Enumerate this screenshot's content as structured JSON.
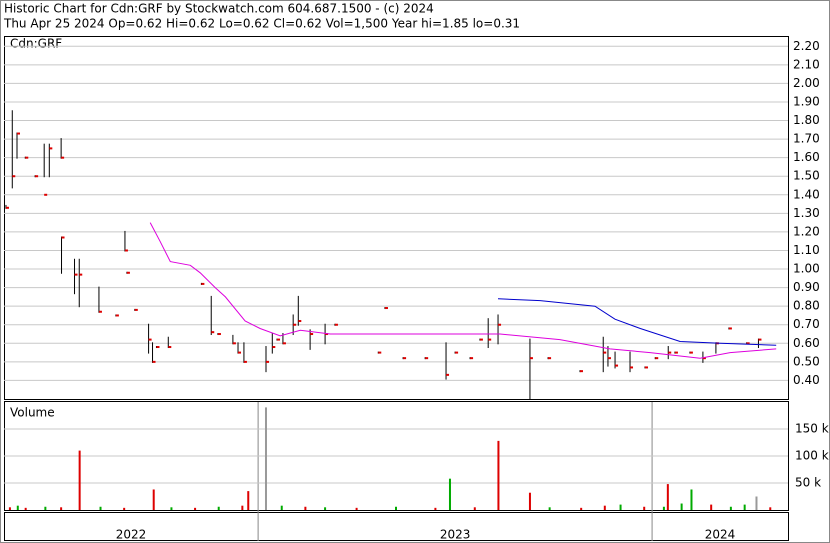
{
  "header": {
    "title": "Historic Chart for Cdn:GRF by Stockwatch.com 604.687.1500 - (c) 2024",
    "info": "Thu Apr 25 2024  Op=0.62  Hi=0.62  Lo=0.62  Cl=0.62  Vol=1,500  Year hi=1.85  lo=0.31"
  },
  "chart_data": [
    {
      "type": "ohlc",
      "label": "Cdn:GRF",
      "color": "#000000",
      "close_color": "#dd0000",
      "xlim": [
        2022.355,
        2024.345
      ],
      "xticks": [
        2023,
        2024
      ],
      "year_labels": [
        "2022",
        "2023",
        "2024"
      ],
      "ylim": [
        0.3,
        2.25
      ],
      "yticks": [
        {
          "value": 0.4,
          "label": "0.40"
        },
        {
          "value": 0.5,
          "label": "0.50"
        },
        {
          "value": 0.6,
          "label": "0.60"
        },
        {
          "value": 0.7,
          "label": "0.70"
        },
        {
          "value": 0.8,
          "label": "0.80"
        },
        {
          "value": 0.9,
          "label": "0.90"
        },
        {
          "value": 1.0,
          "label": "1.00"
        },
        {
          "value": 1.1,
          "label": "1.10"
        },
        {
          "value": 1.2,
          "label": "1.20"
        },
        {
          "value": 1.3,
          "label": "1.30"
        },
        {
          "value": 1.4,
          "label": "1.40"
        },
        {
          "value": 1.5,
          "label": "1.50"
        },
        {
          "value": 1.6,
          "label": "1.60"
        },
        {
          "value": 1.7,
          "label": "1.70"
        },
        {
          "value": 1.8,
          "label": "1.80"
        },
        {
          "value": 1.9,
          "label": "1.90"
        },
        {
          "value": 2.0,
          "label": "2.00"
        },
        {
          "value": 2.1,
          "label": "2.10"
        },
        {
          "value": 2.2,
          "label": "2.20"
        }
      ],
      "grid": true,
      "x": [
        2022.36,
        2022.376,
        2022.388,
        2022.409,
        2022.434,
        2022.457,
        2022.47,
        2022.5,
        2022.501,
        2022.534,
        2022.546,
        2022.596,
        2022.639,
        2022.662,
        2022.667,
        2022.687,
        2022.722,
        2022.732,
        2022.742,
        2022.772,
        2022.856,
        2022.881,
        2022.898,
        2022.936,
        2022.949,
        2022.964,
        2023.02,
        2023.036,
        2023.048,
        2023.063,
        2023.089,
        2023.102,
        2023.132,
        2023.17,
        2023.195,
        2023.305,
        2023.322,
        2023.368,
        2023.424,
        2023.477,
        2023.5,
        2023.538,
        2023.563,
        2023.584,
        2023.609,
        2023.69,
        2023.736,
        2023.817,
        2023.876,
        2023.888,
        2023.906,
        2023.944,
        2023.982,
        2024.008,
        2024.041,
        2024.058,
        2024.096,
        2024.129,
        2024.162,
        2024.195,
        2024.24,
        2024.27
      ],
      "high": [
        1.34,
        1.85,
        1.73,
        1.6,
        1.5,
        1.67,
        1.67,
        1.7,
        1.17,
        1.05,
        1.05,
        0.9,
        0.75,
        1.2,
        0.98,
        0.78,
        0.7,
        0.6,
        0.58,
        0.63,
        0.92,
        0.85,
        0.65,
        0.64,
        0.6,
        0.6,
        0.58,
        0.65,
        0.62,
        0.65,
        0.75,
        0.85,
        0.67,
        0.7,
        0.7,
        0.55,
        0.79,
        0.52,
        0.52,
        0.6,
        0.55,
        0.52,
        0.62,
        0.73,
        0.75,
        0.62,
        0.52,
        0.45,
        0.63,
        0.58,
        0.55,
        0.55,
        0.47,
        0.52,
        0.58,
        0.55,
        0.55,
        0.55,
        0.6,
        0.68,
        0.6,
        0.62
      ],
      "low": [
        1.33,
        1.44,
        1.6,
        1.6,
        1.5,
        1.5,
        1.5,
        1.6,
        0.98,
        0.87,
        0.8,
        0.77,
        0.75,
        1.1,
        0.98,
        0.78,
        0.55,
        0.5,
        0.58,
        0.58,
        0.92,
        0.65,
        0.65,
        0.6,
        0.55,
        0.5,
        0.45,
        0.55,
        0.62,
        0.6,
        0.65,
        0.7,
        0.57,
        0.6,
        0.7,
        0.55,
        0.79,
        0.52,
        0.52,
        0.41,
        0.55,
        0.52,
        0.62,
        0.58,
        0.6,
        0.3,
        0.52,
        0.45,
        0.45,
        0.48,
        0.47,
        0.45,
        0.47,
        0.52,
        0.52,
        0.55,
        0.55,
        0.5,
        0.55,
        0.68,
        0.6,
        0.58
      ],
      "close": [
        1.33,
        1.5,
        1.73,
        1.6,
        1.5,
        1.4,
        1.65,
        1.6,
        1.17,
        0.97,
        0.97,
        0.77,
        0.75,
        1.1,
        0.98,
        0.78,
        0.62,
        0.5,
        0.58,
        0.58,
        0.92,
        0.66,
        0.65,
        0.6,
        0.55,
        0.5,
        0.5,
        0.58,
        0.62,
        0.6,
        0.7,
        0.72,
        0.65,
        0.65,
        0.7,
        0.55,
        0.79,
        0.52,
        0.52,
        0.43,
        0.55,
        0.52,
        0.62,
        0.62,
        0.7,
        0.52,
        0.52,
        0.45,
        0.55,
        0.52,
        0.48,
        0.47,
        0.47,
        0.52,
        0.55,
        0.55,
        0.55,
        0.52,
        0.6,
        0.68,
        0.6,
        0.62
      ],
      "lines": [
        {
          "color": "#dd00dd",
          "x": [
            2022.726,
            2022.751,
            2022.777,
            2022.828,
            2022.853,
            2022.891,
            2022.917,
            2022.967,
            2023.005,
            2023.056,
            2023.107,
            2023.183,
            2023.411,
            2023.614,
            2023.766,
            2023.893,
            2023.995,
            2024.122,
            2024.198,
            2024.315
          ],
          "values": [
            1.25,
            1.15,
            1.04,
            1.02,
            0.98,
            0.9,
            0.85,
            0.72,
            0.68,
            0.64,
            0.67,
            0.65,
            0.65,
            0.65,
            0.62,
            0.57,
            0.55,
            0.52,
            0.55,
            0.57
          ]
        },
        {
          "color": "#0000cc",
          "x": [
            2023.609,
            2023.716,
            2023.855,
            2023.906,
            2023.97,
            2024.071,
            2024.173,
            2024.315
          ],
          "values": [
            0.84,
            0.83,
            0.8,
            0.73,
            0.68,
            0.61,
            0.6,
            0.59
          ]
        }
      ]
    },
    {
      "type": "bar",
      "label": "Volume",
      "ylim": [
        0,
        200000
      ],
      "yticks": [
        {
          "value": 50000,
          "label": "50 k"
        },
        {
          "value": 100000,
          "label": "100 k"
        },
        {
          "value": 150000,
          "label": "150 k"
        }
      ],
      "x": [
        2022.37,
        2022.39,
        2022.41,
        2022.46,
        2022.5,
        2022.547,
        2022.6,
        2022.66,
        2022.735,
        2022.78,
        2022.84,
        2022.9,
        2022.96,
        2022.975,
        2023.02,
        2023.06,
        2023.12,
        2023.17,
        2023.25,
        2023.35,
        2023.45,
        2023.487,
        2023.55,
        2023.61,
        2023.69,
        2023.74,
        2023.82,
        2023.88,
        2023.92,
        2023.98,
        2024.03,
        2024.04,
        2024.075,
        2024.1,
        2024.15,
        2024.2,
        2024.235,
        2024.265,
        2024.3
      ],
      "values": [
        5000,
        8000,
        4000,
        6000,
        5000,
        110000,
        6000,
        4000,
        38000,
        5000,
        4000,
        6000,
        8000,
        35000,
        190000,
        8000,
        6000,
        5000,
        4000,
        6000,
        4000,
        58000,
        5000,
        128000,
        32000,
        5000,
        4000,
        8000,
        10000,
        6000,
        6000,
        48000,
        12000,
        38000,
        10000,
        6000,
        10000,
        25000,
        5000
      ],
      "colors": [
        "#dd0000",
        "#00aa00",
        "#dd0000",
        "#00aa00",
        "#dd0000",
        "#dd0000",
        "#00aa00",
        "#dd0000",
        "#dd0000",
        "#00aa00",
        "#dd0000",
        "#00aa00",
        "#dd0000",
        "#dd0000",
        "#999999",
        "#00aa00",
        "#dd0000",
        "#00aa00",
        "#dd0000",
        "#00aa00",
        "#dd0000",
        "#00aa00",
        "#dd0000",
        "#dd0000",
        "#dd0000",
        "#00aa00",
        "#dd0000",
        "#dd0000",
        "#00aa00",
        "#dd0000",
        "#00aa00",
        "#dd0000",
        "#00aa00",
        "#00aa00",
        "#dd0000",
        "#00aa00",
        "#00aa00",
        "#999999",
        "#dd0000"
      ]
    }
  ]
}
